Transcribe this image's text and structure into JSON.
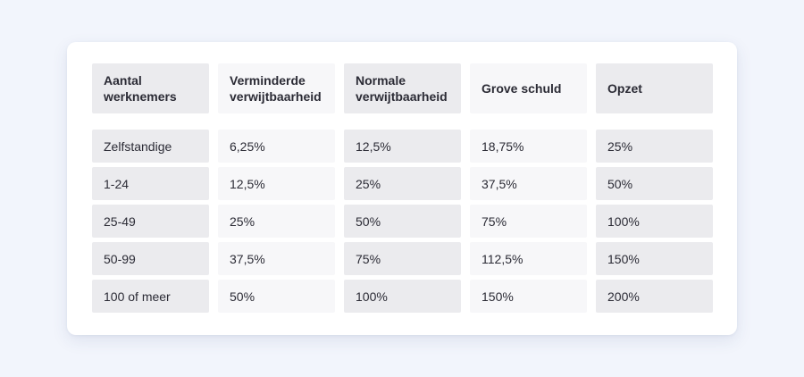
{
  "table": {
    "headers": [
      "Aantal werknemers",
      "Verminderde verwijtbaarheid",
      "Normale verwijtbaarheid",
      "Grove schuld",
      "Opzet"
    ],
    "rows": [
      [
        "Zelfstandige",
        "6,25%",
        "12,5%",
        "18,75%",
        "25%"
      ],
      [
        "1-24",
        "12,5%",
        "25%",
        "37,5%",
        "50%"
      ],
      [
        "25-49",
        "25%",
        "50%",
        "75%",
        "100%"
      ],
      [
        "50-99",
        "37,5%",
        "75%",
        "112,5%",
        "150%"
      ],
      [
        "100 of meer",
        "50%",
        "100%",
        "150%",
        "200%"
      ]
    ]
  },
  "colors": {
    "page_background": "#f2f5fc",
    "card_background": "#ffffff",
    "cell_dark": "#ebebee",
    "cell_light": "#f7f7f9",
    "text": "#2b2b35"
  }
}
